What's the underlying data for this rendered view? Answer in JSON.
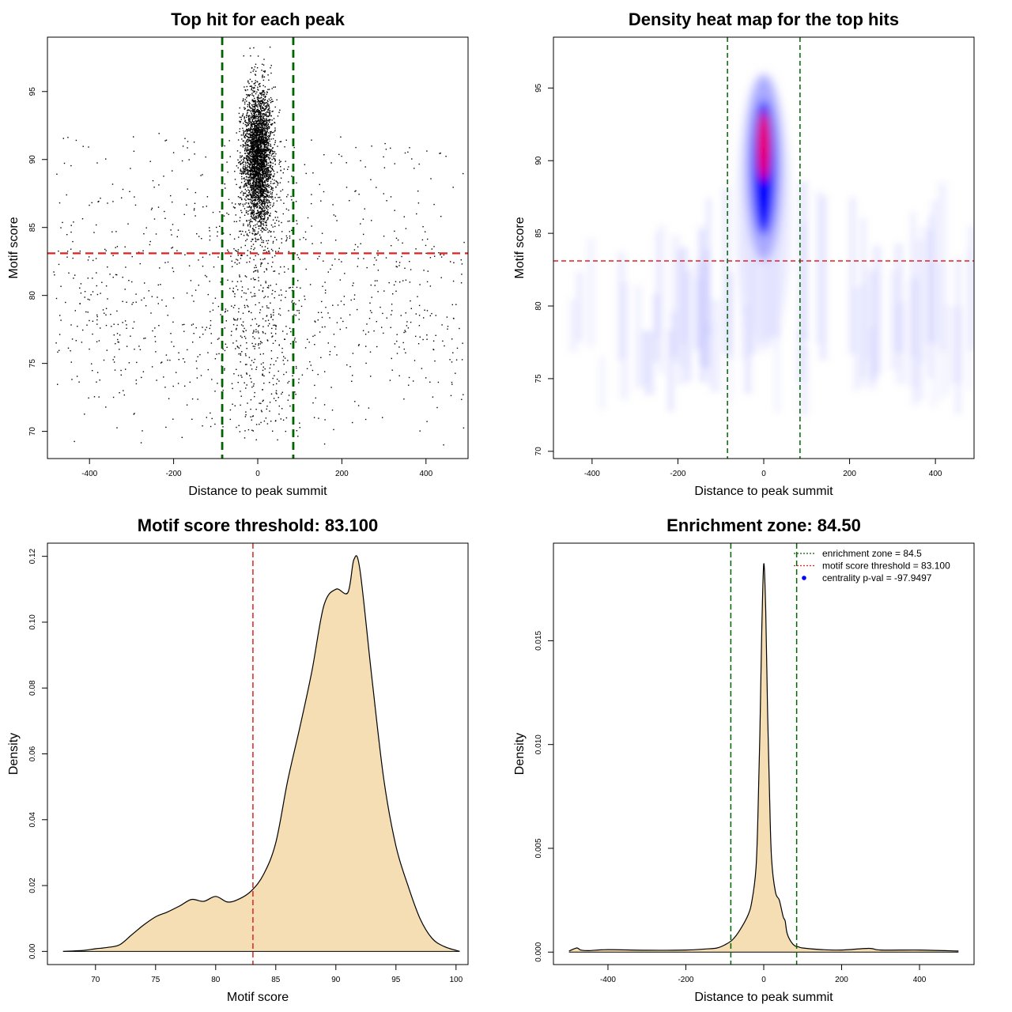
{
  "chart_data": [
    {
      "type": "scatter",
      "title": "Top hit for each peak",
      "xlabel": "Distance to peak summit",
      "ylabel": "Motif score",
      "xlim": [
        -500,
        500
      ],
      "ylim": [
        68,
        99
      ],
      "xticks": [
        "-400",
        "-200",
        "0",
        "200",
        "400"
      ],
      "yticks": [
        "70",
        "75",
        "80",
        "85",
        "90",
        "95"
      ],
      "threshold_y": 83.1,
      "zone_x": [
        -84.5,
        84.5
      ],
      "point_color": "#000000",
      "threshold_color": "#dd2222",
      "zone_color": "#006400",
      "central_cluster": {
        "x_mean": 0,
        "x_sd": 17,
        "y_mean": 90.2,
        "y_sd": 2.6,
        "y_max": 98.4,
        "n": 3200
      },
      "background_points": {
        "x_range": [
          -490,
          490
        ],
        "y_range": [
          69,
          94
        ],
        "n": 900
      }
    },
    {
      "type": "heatmap",
      "title": "Density heat map for the top hits",
      "xlabel": "Distance to peak summit",
      "ylabel": "Motif score",
      "xlim": [
        -490,
        490
      ],
      "ylim": [
        69.5,
        98.5
      ],
      "xticks": [
        "-400",
        "-200",
        "0",
        "200",
        "400"
      ],
      "yticks": [
        "70",
        "75",
        "80",
        "85",
        "90",
        "95"
      ],
      "threshold_y": 83.1,
      "zone_x": [
        -84.5,
        84.5
      ],
      "peak": {
        "x": 0,
        "y": 91
      },
      "colors": [
        "#ffffff",
        "#0000ff",
        "#ff0000"
      ]
    },
    {
      "type": "area",
      "title": "Motif score threshold: 83.100",
      "xlabel": "Motif score",
      "ylabel": "Density",
      "xlim": [
        66,
        101
      ],
      "ylim": [
        -0.004,
        0.124
      ],
      "xticks": [
        "70",
        "75",
        "80",
        "85",
        "90",
        "95",
        "100"
      ],
      "yticks": [
        "0.00",
        "0.02",
        "0.04",
        "0.06",
        "0.08",
        "0.10",
        "0.12"
      ],
      "threshold_x": 83.1,
      "fill_color": "#f5deb3",
      "x": [
        67.3,
        69,
        70,
        71,
        72,
        73,
        74,
        75,
        76,
        77,
        78,
        79,
        80,
        81,
        82,
        83,
        84,
        85,
        86,
        87,
        88,
        89,
        90,
        91,
        91.5,
        92,
        93,
        94,
        95,
        96,
        97,
        98,
        99,
        100.3
      ],
      "y": [
        0,
        0.0003,
        0.0008,
        0.0012,
        0.002,
        0.005,
        0.008,
        0.0105,
        0.012,
        0.0138,
        0.0158,
        0.0152,
        0.0167,
        0.015,
        0.016,
        0.0185,
        0.0235,
        0.033,
        0.052,
        0.068,
        0.085,
        0.105,
        0.11,
        0.109,
        0.119,
        0.116,
        0.083,
        0.052,
        0.032,
        0.02,
        0.01,
        0.004,
        0.0015,
        0
      ]
    },
    {
      "type": "area",
      "title": "Enrichment zone: 84.50",
      "xlabel": "Distance to peak summit",
      "ylabel": "Density",
      "xlim": [
        -540,
        540
      ],
      "ylim": [
        -0.0006,
        0.0197
      ],
      "xticks": [
        "-400",
        "-200",
        "0",
        "200",
        "400"
      ],
      "yticks": [
        "0.000",
        "0.005",
        "0.010",
        "0.015"
      ],
      "zone_x": [
        -84.5,
        84.5
      ],
      "fill_color": "#f5deb3",
      "x": [
        -500,
        -480,
        -470,
        -450,
        -400,
        -300,
        -200,
        -150,
        -120,
        -100,
        -80,
        -60,
        -40,
        -30,
        -20,
        -15,
        -10,
        -5,
        0,
        5,
        10,
        15,
        20,
        30,
        40,
        50,
        55,
        60,
        70,
        80,
        90,
        100,
        150,
        200,
        270,
        300,
        400,
        500
      ],
      "y": [
        5e-05,
        0.0002,
        0.0001,
        7e-05,
        0.00012,
        9e-05,
        0.0001,
        0.00015,
        0.0002,
        0.00035,
        0.0006,
        0.0011,
        0.0018,
        0.0025,
        0.004,
        0.0065,
        0.0105,
        0.0155,
        0.0187,
        0.0165,
        0.0115,
        0.0075,
        0.0045,
        0.0029,
        0.0025,
        0.0017,
        0.0015,
        0.0009,
        0.0005,
        0.0003,
        0.00025,
        0.0002,
        0.00012,
        0.0001,
        0.00018,
        0.0001,
        0.0001,
        5e-05
      ],
      "legend": [
        {
          "label": "enrichment zone = 84.5",
          "color": "#006400",
          "style": "dotted-line"
        },
        {
          "label": "motif score threshold = 83.100",
          "color": "#dd2222",
          "style": "dotted-line"
        },
        {
          "label": "centrality p-val = -97.9497",
          "color": "#0000ff",
          "style": "point"
        }
      ],
      "legend_position": "top-right"
    }
  ]
}
